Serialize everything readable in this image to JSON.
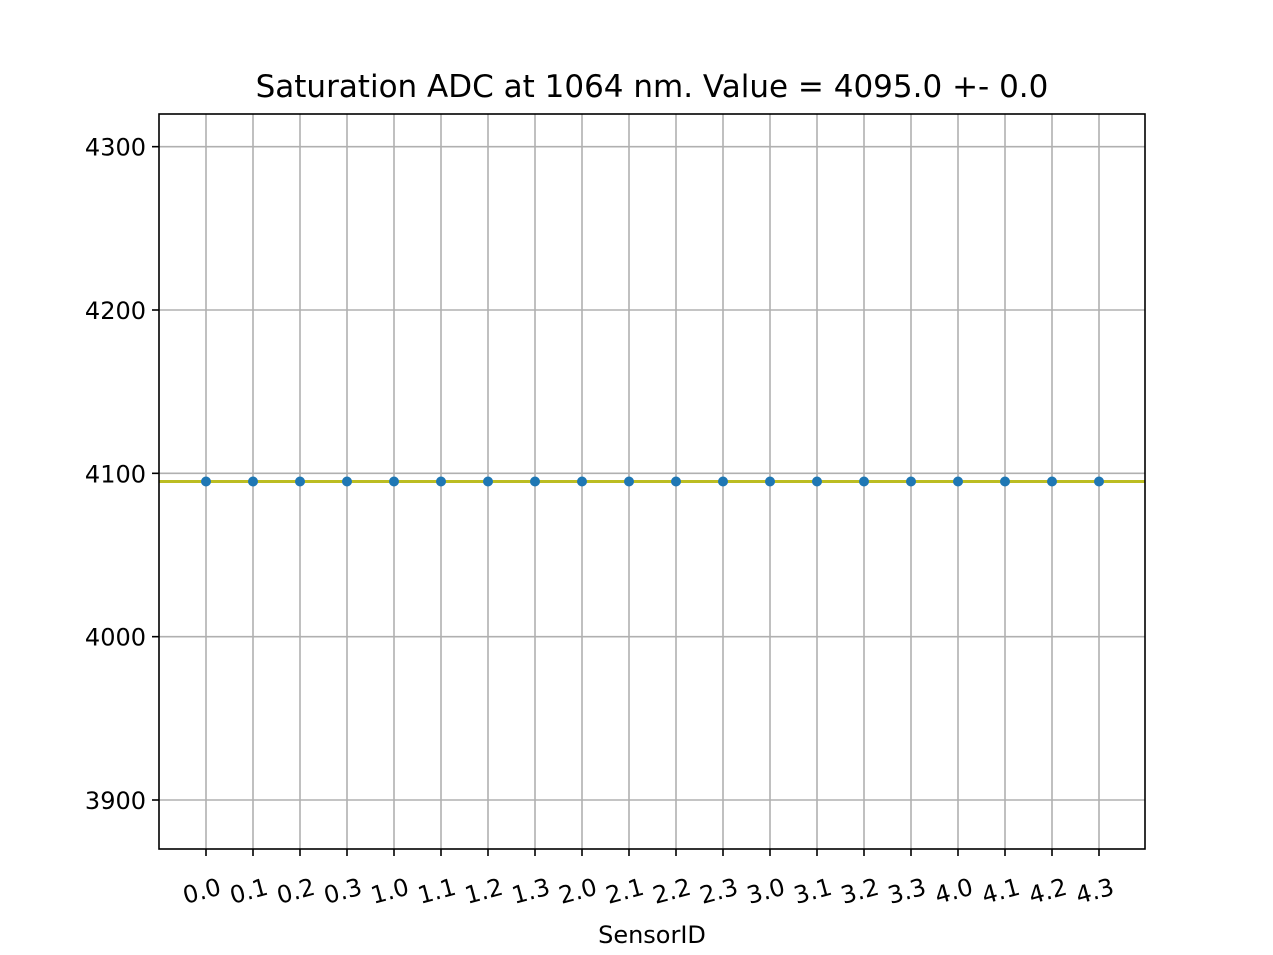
{
  "chart_data": {
    "type": "scatter",
    "title": "Saturation ADC at 1064 nm. Value = 4095.0 +- 0.0",
    "xlabel": "SensorID",
    "ylabel": "",
    "categories": [
      "0.0",
      "0.1",
      "0.2",
      "0.3",
      "1.0",
      "1.1",
      "1.2",
      "1.3",
      "2.0",
      "2.1",
      "2.2",
      "2.3",
      "3.0",
      "3.1",
      "3.2",
      "3.3",
      "4.0",
      "4.1",
      "4.2",
      "4.3"
    ],
    "series": [
      {
        "values": [
          4095,
          4095,
          4095,
          4095,
          4095,
          4095,
          4095,
          4095,
          4095,
          4095,
          4095,
          4095,
          4095,
          4095,
          4095,
          4095,
          4095,
          4095,
          4095,
          4095
        ],
        "color": "#1f77b4"
      }
    ],
    "reference_line": {
      "value": 4095.0,
      "color": "#bcbd22"
    },
    "ylim": [
      3870,
      4320
    ],
    "yticks": [
      3900,
      4000,
      4100,
      4200,
      4300
    ],
    "grid": true,
    "legend": "none"
  }
}
